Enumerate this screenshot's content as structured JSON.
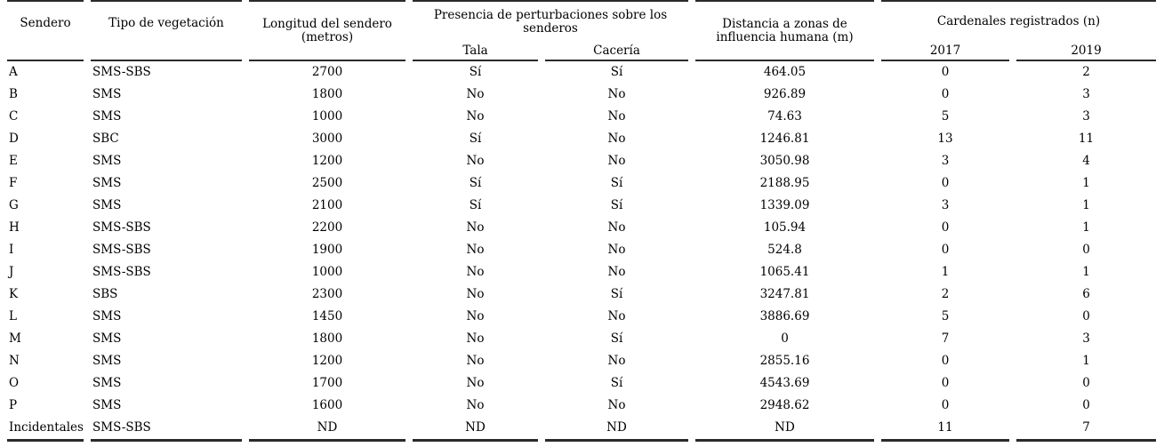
{
  "table": {
    "headers": {
      "sendero": "Sendero",
      "tipo": "Tipo de vegetación",
      "longitud": "Longitud del sendero\n(metros)",
      "perturbaciones": "Presencia de perturbaciones sobre los\nsenderos",
      "tala": "Tala",
      "caceria": "Cacería",
      "distancia": "Distancia a zonas de\ninfluencia humana (m)",
      "cardenales": "Cardenales registrados (n)",
      "y2017": "2017",
      "y2019": "2019"
    },
    "column_order": [
      "sendero",
      "tipo",
      "longitud",
      "tala",
      "caceria",
      "distancia",
      "c2017",
      "c2019"
    ],
    "rows": [
      {
        "sendero": "A",
        "tipo": "SMS-SBS",
        "longitud": "2700",
        "tala": "Sí",
        "caceria": "Sí",
        "distancia": "464.05",
        "c2017": "0",
        "c2019": "2"
      },
      {
        "sendero": "B",
        "tipo": "SMS",
        "longitud": "1800",
        "tala": "No",
        "caceria": "No",
        "distancia": "926.89",
        "c2017": "0",
        "c2019": "3"
      },
      {
        "sendero": "C",
        "tipo": "SMS",
        "longitud": "1000",
        "tala": "No",
        "caceria": "No",
        "distancia": "74.63",
        "c2017": "5",
        "c2019": "3"
      },
      {
        "sendero": "D",
        "tipo": "SBC",
        "longitud": "3000",
        "tala": "Sí",
        "caceria": "No",
        "distancia": "1246.81",
        "c2017": "13",
        "c2019": "11"
      },
      {
        "sendero": "E",
        "tipo": "SMS",
        "longitud": "1200",
        "tala": "No",
        "caceria": "No",
        "distancia": "3050.98",
        "c2017": "3",
        "c2019": "4"
      },
      {
        "sendero": "F",
        "tipo": "SMS",
        "longitud": "2500",
        "tala": "Sí",
        "caceria": "Sí",
        "distancia": "2188.95",
        "c2017": "0",
        "c2019": "1"
      },
      {
        "sendero": "G",
        "tipo": "SMS",
        "longitud": "2100",
        "tala": "Sí",
        "caceria": "Sí",
        "distancia": "1339.09",
        "c2017": "3",
        "c2019": "1"
      },
      {
        "sendero": "H",
        "tipo": "SMS-SBS",
        "longitud": "2200",
        "tala": "No",
        "caceria": "No",
        "distancia": "105.94",
        "c2017": "0",
        "c2019": "1"
      },
      {
        "sendero": "I",
        "tipo": "SMS-SBS",
        "longitud": "1900",
        "tala": "No",
        "caceria": "No",
        "distancia": "524.8",
        "c2017": "0",
        "c2019": "0"
      },
      {
        "sendero": "J",
        "tipo": "SMS-SBS",
        "longitud": "1000",
        "tala": "No",
        "caceria": "No",
        "distancia": "1065.41",
        "c2017": "1",
        "c2019": "1"
      },
      {
        "sendero": "K",
        "tipo": "SBS",
        "longitud": "2300",
        "tala": "No",
        "caceria": "Sí",
        "distancia": "3247.81",
        "c2017": "2",
        "c2019": "6"
      },
      {
        "sendero": "L",
        "tipo": "SMS",
        "longitud": "1450",
        "tala": "No",
        "caceria": "No",
        "distancia": "3886.69",
        "c2017": "5",
        "c2019": "0"
      },
      {
        "sendero": "M",
        "tipo": "SMS",
        "longitud": "1800",
        "tala": "No",
        "caceria": "Sí",
        "distancia": "0",
        "c2017": "7",
        "c2019": "3"
      },
      {
        "sendero": "N",
        "tipo": "SMS",
        "longitud": "1200",
        "tala": "No",
        "caceria": "No",
        "distancia": "2855.16",
        "c2017": "0",
        "c2019": "1"
      },
      {
        "sendero": "O",
        "tipo": "SMS",
        "longitud": "1700",
        "tala": "No",
        "caceria": "Sí",
        "distancia": "4543.69",
        "c2017": "0",
        "c2019": "0"
      },
      {
        "sendero": "P",
        "tipo": "SMS",
        "longitud": "1600",
        "tala": "No",
        "caceria": "No",
        "distancia": "2948.62",
        "c2017": "0",
        "c2019": "0"
      },
      {
        "sendero": "Incidentales",
        "tipo": "SMS-SBS",
        "longitud": "ND",
        "tala": "ND",
        "caceria": "ND",
        "distancia": "ND",
        "c2017": "11",
        "c2019": "7"
      }
    ]
  }
}
